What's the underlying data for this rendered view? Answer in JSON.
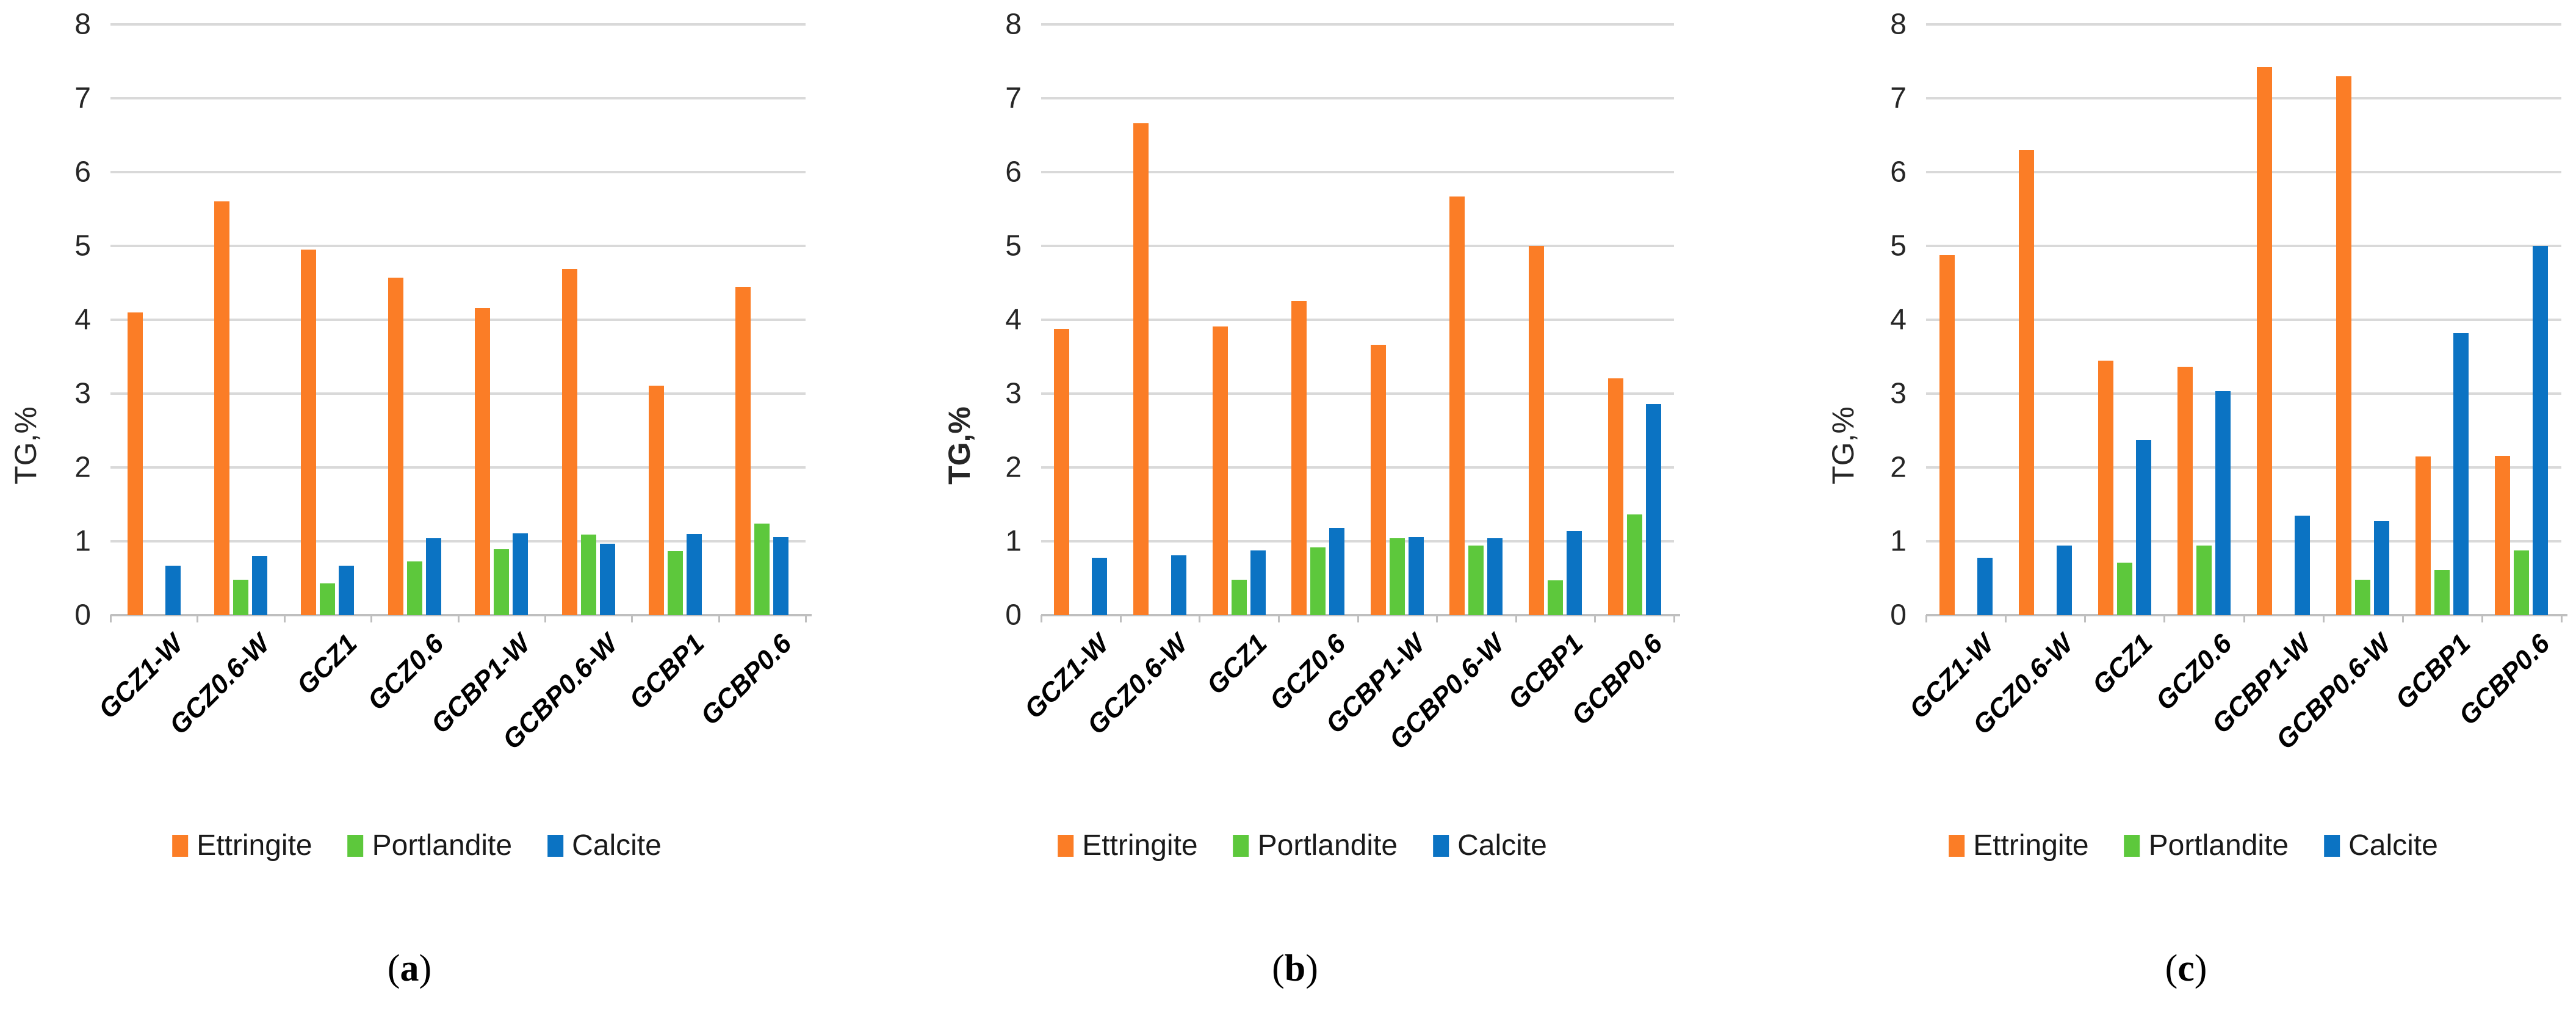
{
  "figure": {
    "y_axis_title": "TG,%",
    "legend_labels": [
      "Ettringite",
      "Portlandite",
      "Calcite"
    ],
    "colors": {
      "ettringite": "#FB7D26",
      "portlandite": "#5DC83C",
      "calcite": "#0B73C3",
      "gridline": "#D9D9D9",
      "axis_line": "#BFBFBF",
      "text": "#262626"
    }
  },
  "chart_data": [
    {
      "type": "bar",
      "caption": {
        "open": "(",
        "letter": "a",
        "close": ")"
      },
      "ylabel": "TG,%",
      "ylabel_bold": false,
      "ylim": [
        0,
        8
      ],
      "yticks": [
        0,
        1,
        2,
        3,
        4,
        5,
        6,
        7,
        8
      ],
      "grid": true,
      "legend_position": "bottom",
      "categories": [
        "GCZ1-W",
        "GCZ0.6-W",
        "GCZ1",
        "GCZ0.6",
        "GCBP1-W",
        "GCBP0.6-W",
        "GCBP1",
        "GCBP0.6"
      ],
      "series": [
        {
          "name": "Ettringite",
          "color": "#FB7D26",
          "values": [
            4.1,
            5.6,
            4.95,
            4.57,
            4.16,
            4.69,
            3.11,
            4.45
          ]
        },
        {
          "name": "Portlandite",
          "color": "#5DC83C",
          "values": [
            0,
            0.48,
            0.43,
            0.73,
            0.89,
            1.09,
            0.87,
            1.24
          ]
        },
        {
          "name": "Calcite",
          "color": "#0B73C3",
          "values": [
            0.67,
            0.8,
            0.67,
            1.04,
            1.11,
            0.97,
            1.1,
            1.06
          ]
        }
      ]
    },
    {
      "type": "bar",
      "caption": {
        "open": "(",
        "letter": "b",
        "close": ")"
      },
      "ylabel": "TG,%",
      "ylabel_bold": true,
      "ylim": [
        0,
        8
      ],
      "yticks": [
        0,
        1,
        2,
        3,
        4,
        5,
        6,
        7,
        8
      ],
      "grid": true,
      "legend_position": "bottom",
      "categories": [
        "GCZ1-W",
        "GCZ0.6-W",
        "GCZ1",
        "GCZ0.6",
        "GCBP1-W",
        "GCBP0.6-W",
        "GCBP1",
        "GCBP0.6"
      ],
      "series": [
        {
          "name": "Ettringite",
          "color": "#FB7D26",
          "values": [
            3.88,
            6.66,
            3.91,
            4.26,
            3.66,
            5.67,
            5.0,
            3.21
          ]
        },
        {
          "name": "Portlandite",
          "color": "#5DC83C",
          "values": [
            0,
            0,
            0.48,
            0.92,
            1.04,
            0.94,
            0.47,
            1.36
          ]
        },
        {
          "name": "Calcite",
          "color": "#0B73C3",
          "values": [
            0.78,
            0.81,
            0.88,
            1.18,
            1.06,
            1.04,
            1.14,
            2.86
          ]
        }
      ]
    },
    {
      "type": "bar",
      "caption": {
        "open": "(",
        "letter": "c",
        "close": ")"
      },
      "ylabel": "TG,%",
      "ylabel_bold": false,
      "ylim": [
        0,
        8
      ],
      "yticks": [
        0,
        1,
        2,
        3,
        4,
        5,
        6,
        7,
        8
      ],
      "grid": true,
      "legend_position": "bottom",
      "categories": [
        "GCZ1-W",
        "GCZ0.6-W",
        "GCZ1",
        "GCZ0.6",
        "GCBP1-W",
        "GCBP0.6-W",
        "GCBP1",
        "GCBP0.6"
      ],
      "series": [
        {
          "name": "Ettringite",
          "color": "#FB7D26",
          "values": [
            4.88,
            6.3,
            3.45,
            3.36,
            7.42,
            7.3,
            2.15,
            2.16
          ]
        },
        {
          "name": "Portlandite",
          "color": "#5DC83C",
          "values": [
            0,
            0,
            0.71,
            0.94,
            0,
            0.48,
            0.61,
            0.88
          ]
        },
        {
          "name": "Calcite",
          "color": "#0B73C3",
          "values": [
            0.78,
            0.94,
            2.37,
            3.03,
            1.35,
            1.27,
            3.82,
            5.0
          ]
        }
      ]
    }
  ]
}
